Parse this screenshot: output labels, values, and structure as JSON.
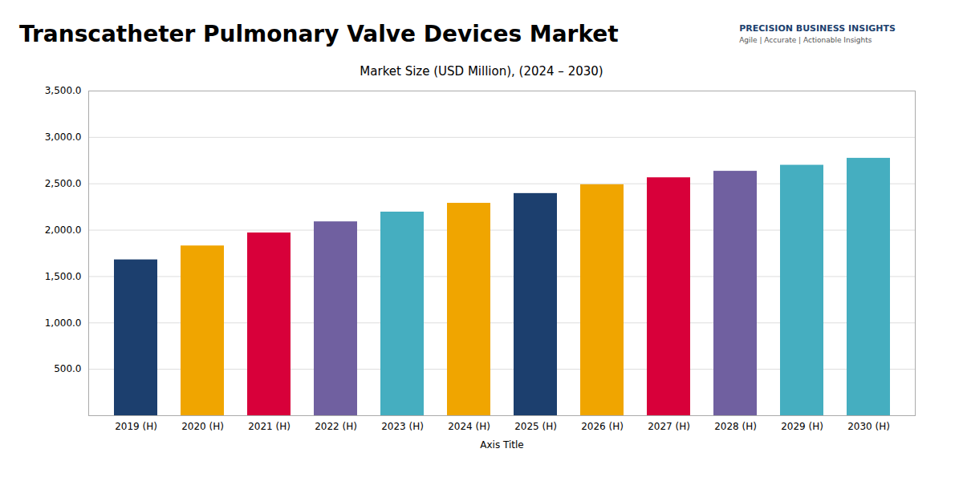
{
  "chart_data": {
    "type": "bar",
    "title": "Transcatheter Pulmonary Valve Devices Market",
    "subtitle": "Market Size (USD Million), (2024 – 2030)",
    "xlabel": "Axis Title",
    "annotations": [
      "PRECISION BUSINESS INSIGHTS",
      "Agile | Accurate | Actionable Insights"
    ],
    "categories": [
      "2019 (H)",
      "2020 (H)",
      "2021 (H)",
      "2022 (H)",
      "2023 (H)",
      "2024 (H)",
      "2025 (H)",
      "2026 (H)",
      "2027 (H)",
      "2028 (H)",
      "2029 (H)",
      "2030 (H)"
    ],
    "values": [
      1680,
      1830,
      1970,
      2090,
      2195,
      2290,
      2395,
      2490,
      2565,
      2635,
      2700,
      2775
    ],
    "colors": [
      "#1c3f6e",
      "#f0a500",
      "#d8003a",
      "#7060a0",
      "#45aec0",
      "#f0a500",
      "#1c3f6e",
      "#f0a500",
      "#d8003a",
      "#7060a0",
      "#45aec0",
      "#45aec0"
    ],
    "ylim": [
      0,
      3500
    ],
    "yticks": [
      {
        "value": 500,
        "label": "500.0"
      },
      {
        "value": 1000,
        "label": "1,000.0"
      },
      {
        "value": 1500,
        "label": "1,500.0"
      },
      {
        "value": 2000,
        "label": "2,000.0"
      },
      {
        "value": 2500,
        "label": "2,500.0"
      },
      {
        "value": 3000,
        "label": "3,000.0"
      },
      {
        "value": 3500,
        "label": "3,500.0"
      }
    ],
    "grid": true
  }
}
